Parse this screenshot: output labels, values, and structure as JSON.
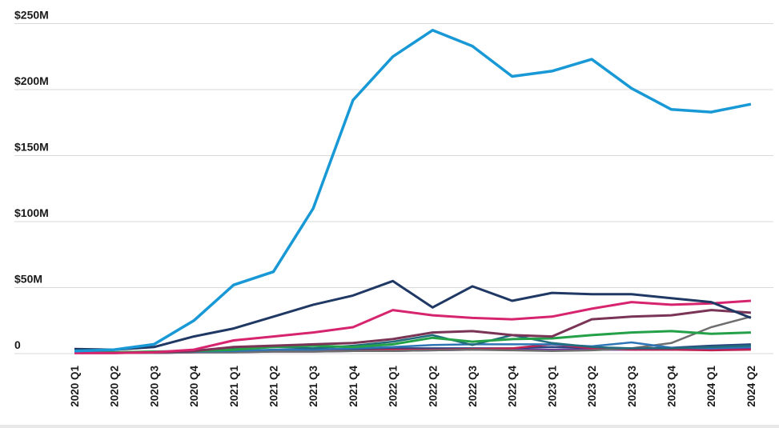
{
  "chart_data": {
    "type": "line",
    "title": "",
    "xlabel": "",
    "ylabel": "",
    "ylim": [
      0,
      250
    ],
    "grid": true,
    "legend": "none",
    "y_ticks": [
      {
        "value": 250,
        "label": "$250M"
      },
      {
        "value": 200,
        "label": "$200M"
      },
      {
        "value": 150,
        "label": "$150M"
      },
      {
        "value": 100,
        "label": "$100M"
      },
      {
        "value": 50,
        "label": "$50M"
      },
      {
        "value": 0,
        "label": "0"
      }
    ],
    "categories": [
      "2020 Q1",
      "2020 Q2",
      "2020 Q3",
      "2020 Q4",
      "2021 Q1",
      "2021 Q2",
      "2021 Q3",
      "2021 Q4",
      "2022 Q1",
      "2022 Q2",
      "2022 Q3",
      "2022 Q4",
      "2023 Q1",
      "2023 Q2",
      "2023 Q3",
      "2023 Q4",
      "2024 Q1",
      "2024 Q2"
    ],
    "unit": "USD millions",
    "series": [
      {
        "name": "dark-blue",
        "color": "#27447E",
        "width": 2.5,
        "values": [
          1,
          1,
          1,
          1.5,
          2,
          2.5,
          3,
          3,
          4,
          4,
          4,
          4,
          5,
          4,
          4,
          4.5,
          6,
          7
        ]
      },
      {
        "name": "purple",
        "color": "#7030A0",
        "width": 2.5,
        "values": [
          0.5,
          0.5,
          0.5,
          1,
          1,
          1.5,
          1.5,
          2,
          2,
          2.5,
          3,
          3,
          3,
          3,
          3,
          3,
          3.5,
          4
        ]
      },
      {
        "name": "crimson",
        "color": "#BF2250",
        "width": 2.5,
        "values": [
          0.5,
          0.5,
          0.5,
          1,
          1.5,
          2,
          2,
          2,
          3,
          3,
          3.5,
          4,
          7,
          4,
          3,
          3,
          2.5,
          3
        ]
      },
      {
        "name": "gray",
        "color": "#6E6E6E",
        "width": 2.5,
        "values": [
          0.5,
          0.5,
          0.5,
          1,
          1,
          1.5,
          1.5,
          2,
          2,
          2.5,
          3,
          2.5,
          2,
          2.5,
          4,
          8,
          20,
          28
        ]
      },
      {
        "name": "steel-blue",
        "color": "#2E75B6",
        "width": 2.5,
        "values": [
          0.5,
          1,
          1,
          1.5,
          2,
          3,
          3,
          4,
          5,
          6.5,
          7,
          7,
          7,
          5.5,
          8.5,
          4.5,
          4,
          5
        ]
      },
      {
        "name": "teal",
        "color": "#206B7C",
        "width": 2.5,
        "values": [
          1,
          1,
          1.5,
          2,
          4,
          5,
          4,
          6,
          9,
          14,
          6.5,
          14,
          8,
          5,
          4,
          4,
          5,
          6
        ]
      },
      {
        "name": "green",
        "color": "#24A148",
        "width": 3,
        "values": [
          1,
          1,
          1.5,
          2,
          3,
          5,
          6,
          5,
          7,
          12,
          9,
          11,
          11.5,
          14,
          16,
          17,
          15,
          16
        ]
      },
      {
        "name": "dark-rose",
        "color": "#7A3456",
        "width": 3,
        "values": [
          0.5,
          0.5,
          1,
          2,
          5,
          6,
          7,
          8,
          11,
          16,
          17,
          14,
          13,
          26,
          28,
          29,
          33,
          31
        ]
      },
      {
        "name": "pink",
        "color": "#D6246E",
        "width": 3,
        "values": [
          0.5,
          0.5,
          1,
          3,
          10,
          13,
          16,
          20,
          33,
          29,
          27,
          26,
          28,
          34,
          39,
          37,
          38,
          40
        ]
      },
      {
        "name": "navy",
        "color": "#1F3864",
        "width": 3,
        "values": [
          3.5,
          3,
          5,
          13,
          19,
          28,
          37,
          44,
          55,
          35,
          51,
          40,
          46,
          45,
          45,
          42,
          39,
          27
        ]
      },
      {
        "name": "light-blue",
        "color": "#1899D6",
        "width": 3.5,
        "values": [
          2,
          3,
          7,
          25,
          52,
          62,
          110,
          192,
          225,
          245,
          233,
          210,
          214,
          223,
          201,
          185,
          183,
          189
        ]
      }
    ],
    "layout": {
      "grid_color": "#D9D9D9",
      "label_color": "#1A1A1A",
      "x_labels_rotated": true
    }
  }
}
